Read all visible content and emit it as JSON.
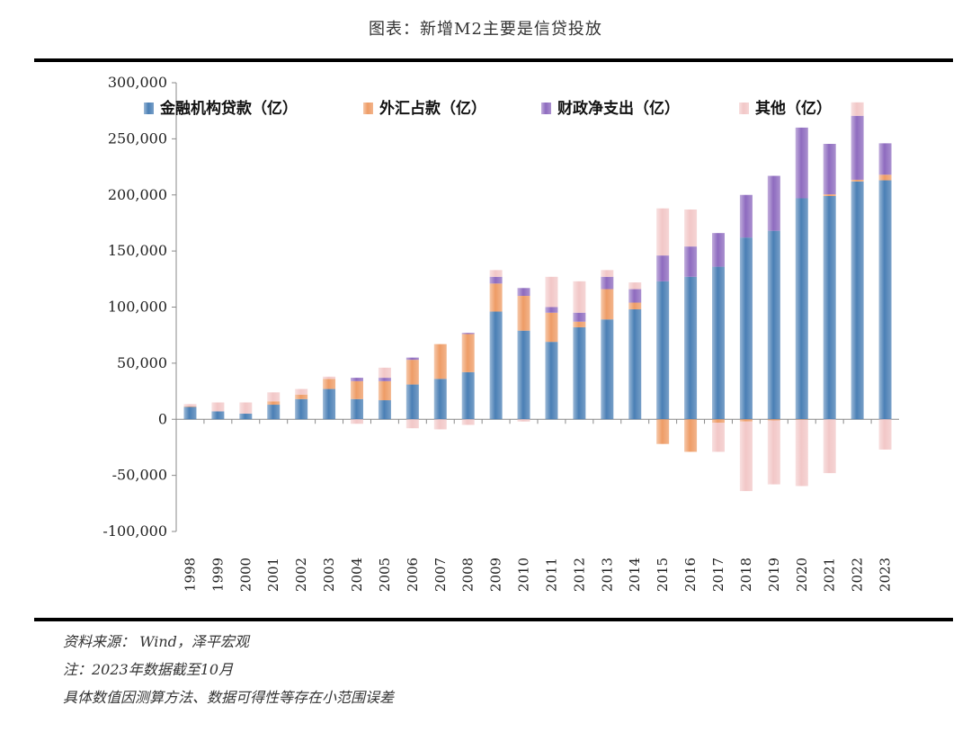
{
  "header": {
    "title": "图表：新增M2主要是信贷投放"
  },
  "notes": {
    "source": "资料来源： Wind，泽平宏观",
    "note": "注：2023年数据截至10月",
    "disclaimer": "具体数值因测算方法、数据可得性等存在小范围误差"
  },
  "chart_data": {
    "type": "bar",
    "stacked": true,
    "title": "图表：新增M2主要是信贷投放",
    "xlabel": "",
    "ylabel": "",
    "ylim": [
      -100000,
      300000
    ],
    "yticks": [
      -100000,
      -50000,
      0,
      50000,
      100000,
      150000,
      200000,
      250000,
      300000
    ],
    "ytick_labels": [
      "-100,000",
      "-50,000",
      "0",
      "50,000",
      "100,000",
      "150,000",
      "200,000",
      "250,000",
      "300,000"
    ],
    "legend_position": "top",
    "grid": false,
    "categories": [
      "1998",
      "1999",
      "2000",
      "2001",
      "2002",
      "2003",
      "2004",
      "2005",
      "2006",
      "2007",
      "2008",
      "2009",
      "2010",
      "2011",
      "2012",
      "2013",
      "2014",
      "2015",
      "2016",
      "2017",
      "2018",
      "2019",
      "2020",
      "2021",
      "2022",
      "2023"
    ],
    "series": [
      {
        "name": "金融机构贷款（亿）",
        "color": "#4a7fb5",
        "values": [
          11000,
          7000,
          5000,
          13000,
          18000,
          27000,
          18000,
          17000,
          31000,
          36000,
          42000,
          96000,
          79000,
          69000,
          82000,
          89000,
          98000,
          123000,
          127000,
          136000,
          162000,
          168000,
          197000,
          199000,
          212000,
          213000
        ]
      },
      {
        "name": "外汇占款（亿）",
        "color": "#ee9c66",
        "values": [
          500,
          0,
          0,
          3000,
          4000,
          9000,
          16000,
          17000,
          22000,
          31000,
          34000,
          25000,
          31000,
          26000,
          5000,
          27000,
          6000,
          -22000,
          -29000,
          -3000,
          -2000,
          -1000,
          -500,
          1500,
          1500,
          5000
        ]
      },
      {
        "name": "财政净支出（亿）",
        "color": "#8e6bbf",
        "values": [
          0,
          0,
          0,
          0,
          0,
          0,
          3000,
          3000,
          2000,
          0,
          1000,
          6000,
          7000,
          5000,
          8000,
          11000,
          12000,
          23000,
          27000,
          30000,
          38000,
          49000,
          63000,
          45000,
          57000,
          28000
        ]
      },
      {
        "name": "其他（亿）",
        "color": "#f2c7c7",
        "values": [
          2000,
          8000,
          10000,
          8000,
          5000,
          2000,
          -4000,
          9000,
          -8000,
          -9000,
          -5000,
          6000,
          -2000,
          27000,
          28000,
          6000,
          6000,
          42000,
          33000,
          -26000,
          -62000,
          -57000,
          -59000,
          -48000,
          12000,
          -27000
        ]
      }
    ]
  }
}
